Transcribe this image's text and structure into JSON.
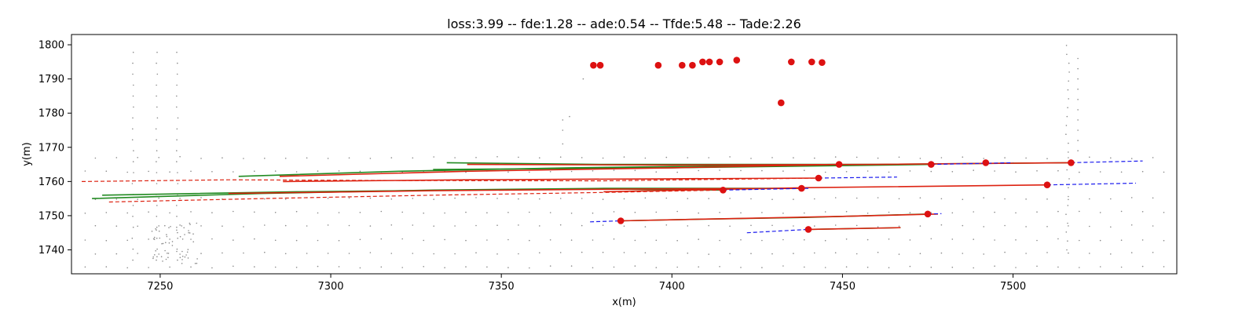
{
  "title": "loss:3.99 -- fde:1.28 -- ade:0.54 -- Tfde:5.48 -- Tade:2.26",
  "chart_data": {
    "type": "scatter",
    "title": "loss:3.99 -- fde:1.28 -- ade:0.54 -- Tfde:5.48 -- Tade:2.26",
    "xlabel": "x(m)",
    "ylabel": "y(m)",
    "xlim": [
      7224,
      7548
    ],
    "ylim": [
      1733,
      1803
    ],
    "xticks": [
      7250,
      7300,
      7350,
      7400,
      7450,
      7500
    ],
    "yticks": [
      1740,
      1750,
      1760,
      1770,
      1780,
      1790,
      1800
    ],
    "grid": false,
    "legend": "none",
    "colors": {
      "map_points": "#8a8a8a",
      "ground_truth": "#228b22",
      "history": "#98e098",
      "prediction": "#dd2211",
      "future_dashed": "#1a1aee",
      "agent_marker": "#dd1111"
    },
    "series": [
      {
        "role": "agent-positions",
        "marker": "circle",
        "color": "#dd1111",
        "points": [
          [
            7377,
            1794
          ],
          [
            7379,
            1794
          ],
          [
            7396,
            1794
          ],
          [
            7403,
            1794
          ],
          [
            7406,
            1794
          ],
          [
            7409,
            1795
          ],
          [
            7411,
            1795
          ],
          [
            7414,
            1795
          ],
          [
            7419,
            1795.5
          ],
          [
            7435,
            1795
          ],
          [
            7441,
            1795
          ],
          [
            7444,
            1794.8
          ],
          [
            7432,
            1783
          ],
          [
            7449,
            1765
          ],
          [
            7476,
            1765
          ],
          [
            7492,
            1765.5
          ],
          [
            7517,
            1765.5
          ],
          [
            7443,
            1761
          ],
          [
            7415,
            1757.5
          ],
          [
            7438,
            1758
          ],
          [
            7510,
            1759
          ],
          [
            7475,
            1750.5
          ],
          [
            7385,
            1748.5
          ],
          [
            7440,
            1746
          ]
        ]
      },
      {
        "role": "ground-truth-tracks",
        "line": "solid",
        "color": "#228b22",
        "tracks": [
          [
            [
              7334,
              1765.5
            ],
            [
              7380,
              1765
            ],
            [
              7420,
              1765
            ],
            [
              7460,
              1765
            ],
            [
              7517,
              1765.5
            ]
          ],
          [
            [
              7273,
              1761.5
            ],
            [
              7320,
              1763
            ],
            [
              7370,
              1764
            ],
            [
              7410,
              1764.5
            ],
            [
              7449,
              1765
            ]
          ],
          [
            [
              7230,
              1755
            ],
            [
              7280,
              1756.5
            ],
            [
              7330,
              1757.5
            ],
            [
              7380,
              1758
            ],
            [
              7438,
              1758
            ]
          ],
          [
            [
              7233,
              1756
            ],
            [
              7290,
              1757
            ],
            [
              7340,
              1757.5
            ],
            [
              7380,
              1757.8
            ],
            [
              7415,
              1757.5
            ]
          ],
          [
            [
              7330,
              1763.5
            ],
            [
              7400,
              1764
            ],
            [
              7476,
              1765
            ]
          ],
          [
            [
              7385,
              1748.5
            ],
            [
              7410,
              1749
            ],
            [
              7440,
              1749.5
            ],
            [
              7475,
              1750.5
            ]
          ],
          [
            [
              7440,
              1746
            ],
            [
              7467,
              1746.5
            ]
          ]
        ]
      },
      {
        "role": "predicted-tracks",
        "line": "solid",
        "color": "#dd2211",
        "tracks": [
          [
            [
              7340,
              1765
            ],
            [
              7400,
              1764.8
            ],
            [
              7460,
              1765
            ],
            [
              7517,
              1765.5
            ]
          ],
          [
            [
              7285,
              1761.5
            ],
            [
              7340,
              1763
            ],
            [
              7400,
              1764
            ],
            [
              7449,
              1765
            ]
          ],
          [
            [
              7286,
              1760
            ],
            [
              7340,
              1760.5
            ],
            [
              7400,
              1760.8
            ],
            [
              7443,
              1761
            ]
          ],
          [
            [
              7270,
              1756.5
            ],
            [
              7330,
              1757.3
            ],
            [
              7390,
              1757.8
            ],
            [
              7438,
              1758
            ]
          ],
          [
            [
              7385,
              1748.5
            ],
            [
              7420,
              1749.2
            ],
            [
              7450,
              1749.8
            ],
            [
              7478,
              1750.5
            ]
          ],
          [
            [
              7440,
              1746
            ],
            [
              7467,
              1746.5
            ]
          ],
          [
            [
              7380,
              1757
            ],
            [
              7440,
              1758.2
            ],
            [
              7510,
              1759
            ]
          ]
        ]
      },
      {
        "role": "predicted-past-dashed",
        "line": "dashed",
        "color": "#dd2211",
        "tracks": [
          [
            [
              7227,
              1760
            ],
            [
              7270,
              1760.5
            ],
            [
              7320,
              1760.3
            ],
            [
              7380,
              1760.2
            ],
            [
              7443,
              1761
            ]
          ],
          [
            [
              7235,
              1754
            ],
            [
              7280,
              1755
            ],
            [
              7330,
              1756
            ],
            [
              7380,
              1756.8
            ],
            [
              7415,
              1757.5
            ]
          ]
        ]
      },
      {
        "role": "future-dashed",
        "line": "dashed",
        "color": "#1a1aee",
        "tracks": [
          [
            [
              7517,
              1765.5
            ],
            [
              7538,
              1766
            ]
          ],
          [
            [
              7443,
              1761
            ],
            [
              7466,
              1761.3
            ]
          ],
          [
            [
              7510,
              1759
            ],
            [
              7536,
              1759.5
            ]
          ],
          [
            [
              7415,
              1757.5
            ],
            [
              7440,
              1758
            ]
          ],
          [
            [
              7376,
              1748.2
            ],
            [
              7385,
              1748.5
            ]
          ],
          [
            [
              7475,
              1750.5
            ],
            [
              7479,
              1750.6
            ]
          ],
          [
            [
              7422,
              1745
            ],
            [
              7440,
              1746
            ]
          ],
          [
            [
              7476,
              1765
            ],
            [
              7500,
              1765.5
            ]
          ]
        ]
      }
    ]
  }
}
